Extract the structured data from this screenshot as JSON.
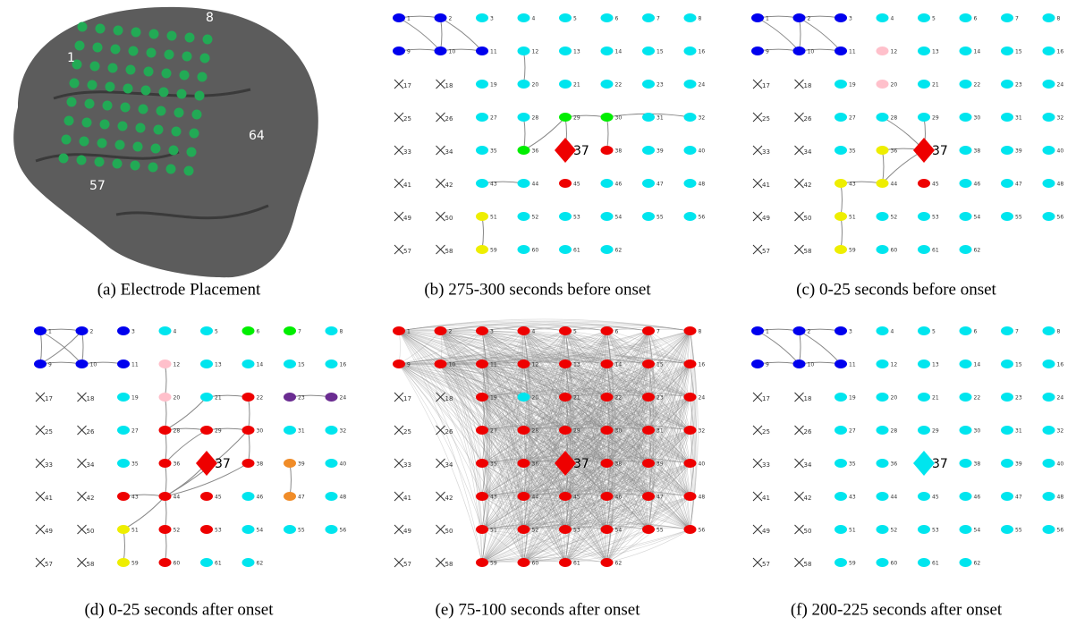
{
  "electrode_labels": [
    1,
    2,
    3,
    4,
    5,
    6,
    7,
    8,
    9,
    10,
    11,
    12,
    13,
    14,
    15,
    16,
    17,
    18,
    19,
    20,
    21,
    22,
    23,
    24,
    25,
    26,
    27,
    28,
    29,
    30,
    31,
    32,
    33,
    34,
    35,
    36,
    37,
    38,
    39,
    40,
    41,
    42,
    43,
    44,
    45,
    46,
    47,
    48,
    49,
    50,
    51,
    52,
    53,
    54,
    55,
    56,
    57,
    58,
    59,
    60,
    61,
    62
  ],
  "panels": [
    {
      "caption": "(a)  Electrode Placement",
      "labels": [
        "1",
        "8",
        "64",
        "57"
      ]
    },
    {
      "caption": "(b)  275-300 seconds before onset",
      "colors": [
        "bbcccccc",
        "bbbccccc",
        "xxcccccc",
        "xxccggcc",
        "xxcgrrcc",
        "xxccrccc",
        "xxyccccc",
        "xxyccc--"
      ],
      "edges": [
        [
          1,
          2
        ],
        [
          1,
          10
        ],
        [
          2,
          10
        ],
        [
          9,
          10
        ],
        [
          10,
          11
        ],
        [
          2,
          11
        ],
        [
          12,
          20
        ],
        [
          28,
          36
        ],
        [
          29,
          36
        ],
        [
          29,
          37
        ],
        [
          29,
          30
        ],
        [
          30,
          38
        ],
        [
          30,
          32
        ],
        [
          43,
          44
        ],
        [
          51,
          59
        ]
      ]
    },
    {
      "caption": "(c)  0-25 seconds before onset",
      "colors": [
        "bbbccccc",
        "bbbpcccc",
        "xxcpcccc",
        "xxcccccc",
        "xxcyrccc",
        "xxyyrccc",
        "xxyccccc",
        "xxyccc--"
      ],
      "edges": [
        [
          1,
          2
        ],
        [
          2,
          3
        ],
        [
          1,
          10
        ],
        [
          2,
          10
        ],
        [
          9,
          10
        ],
        [
          10,
          11
        ],
        [
          2,
          11
        ],
        [
          28,
          37
        ],
        [
          29,
          37
        ],
        [
          36,
          37
        ],
        [
          36,
          44
        ],
        [
          44,
          37
        ],
        [
          43,
          44
        ],
        [
          43,
          51
        ],
        [
          51,
          59
        ]
      ]
    },
    {
      "caption": "(d)  0-25 seconds after onset",
      "colors": [
        "bbbccggc",
        "bbbpcccc",
        "xxcpcrvv",
        "xxcrrrcc",
        "xxcrrroc",
        "xxrrrcoc",
        "xxyrrccc",
        "xxyrcc--"
      ],
      "edges": [
        [
          1,
          2
        ],
        [
          1,
          9
        ],
        [
          2,
          9
        ],
        [
          1,
          10
        ],
        [
          2,
          10
        ],
        [
          9,
          10
        ],
        [
          10,
          11
        ],
        [
          12,
          20
        ],
        [
          20,
          28
        ],
        [
          28,
          36
        ],
        [
          36,
          44
        ],
        [
          44,
          52
        ],
        [
          52,
          60
        ],
        [
          21,
          28
        ],
        [
          21,
          22
        ],
        [
          22,
          30
        ],
        [
          29,
          30
        ],
        [
          28,
          29
        ],
        [
          30,
          38
        ],
        [
          23,
          24
        ],
        [
          39,
          47
        ],
        [
          43,
          44
        ],
        [
          44,
          51
        ],
        [
          51,
          59
        ],
        [
          37,
          44
        ],
        [
          38,
          44
        ],
        [
          30,
          44
        ],
        [
          36,
          29
        ]
      ]
    },
    {
      "caption": "(e)  75-100 seconds after onset",
      "colors": [
        "rrrrrrrr",
        "rrrrrrrr",
        "xxrcrrrr",
        "xxrrrrrr",
        "xxrrrrrr",
        "xxrrrrrr",
        "xxrrrrrr",
        "xxrrrr--"
      ],
      "edges": "all"
    },
    {
      "caption": "(f)  200-225 seconds after onset",
      "colors": [
        "bbbccccc",
        "bbbccccc",
        "xxcccccc",
        "xxcccccc",
        "xxcccccc",
        "xxcccccc",
        "xxcccccc",
        "xxcccc--"
      ],
      "edges": [
        [
          1,
          2
        ],
        [
          2,
          3
        ],
        [
          1,
          10
        ],
        [
          2,
          10
        ],
        [
          9,
          10
        ],
        [
          10,
          11
        ],
        [
          2,
          11
        ]
      ]
    }
  ]
}
